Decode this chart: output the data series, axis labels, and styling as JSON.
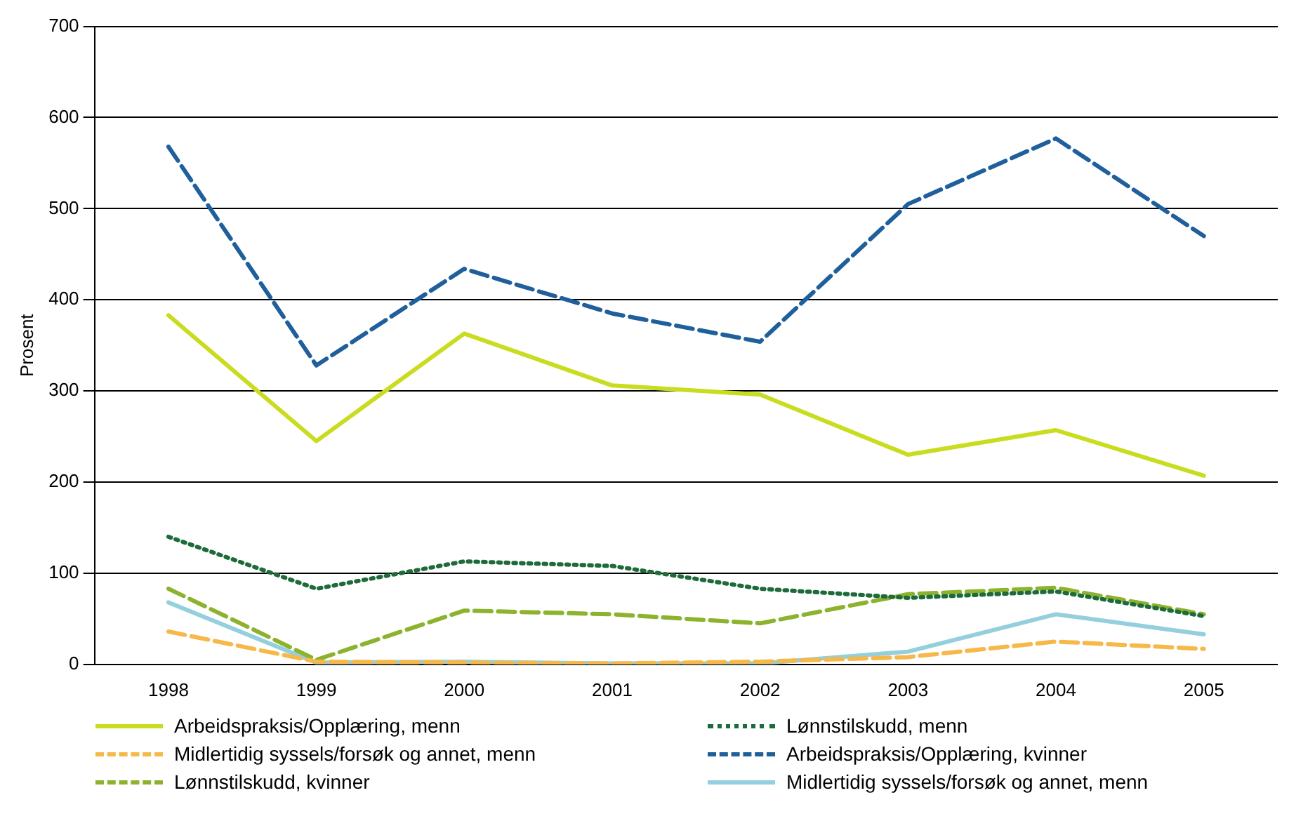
{
  "chart_data": {
    "type": "line",
    "ylabel": "Prosent",
    "categories": [
      "1998",
      "1999",
      "2000",
      "2001",
      "2002",
      "2003",
      "2004",
      "2005"
    ],
    "ylim": [
      0,
      700
    ],
    "yticks": [
      0,
      100,
      200,
      300,
      400,
      500,
      600,
      700
    ],
    "grid": "y",
    "legend": "bottom",
    "marker": "none",
    "series": [
      {
        "name": "Arbeidspraksis/Opplæring, menn",
        "color": "#c9dc1f",
        "line_style": "solid",
        "values": [
          383,
          245,
          363,
          306,
          296,
          230,
          257,
          207
        ]
      },
      {
        "name": "Lønnstilskudd, menn",
        "color": "#1e6b3a",
        "line_style": "dotted",
        "values": [
          140,
          83,
          113,
          108,
          83,
          73,
          80,
          53
        ]
      },
      {
        "name": "Midlertidig syssels/forsøk og annet, menn",
        "color": "#f7b84a",
        "line_style": "dashed",
        "values": [
          36,
          3,
          2,
          1,
          3,
          8,
          25,
          17
        ]
      },
      {
        "name": "Arbeidspraksis/Opplæring, kvinner",
        "color": "#1f5f9c",
        "line_style": "dashed",
        "values": [
          568,
          328,
          434,
          385,
          354,
          505,
          577,
          470
        ]
      },
      {
        "name": "Lønnstilskudd, kvinner",
        "color": "#8db32e",
        "line_style": "dashed",
        "values": [
          83,
          5,
          59,
          55,
          45,
          77,
          84,
          55
        ]
      },
      {
        "name": "Midlertidig syssels/forsøk og annet, menn",
        "color": "#93cfdc",
        "line_style": "solid",
        "values": [
          68,
          2,
          3,
          1,
          1,
          14,
          55,
          33
        ]
      }
    ]
  }
}
